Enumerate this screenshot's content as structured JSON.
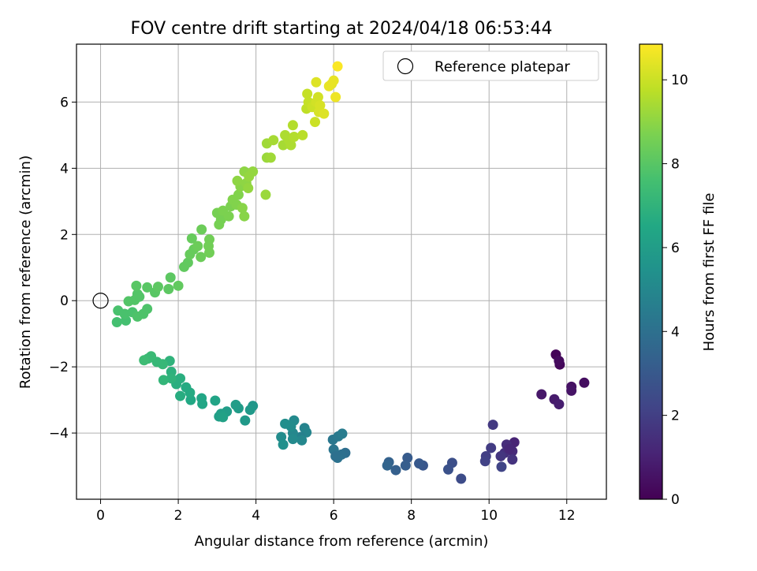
{
  "chart_data": {
    "type": "scatter",
    "title": "FOV centre drift starting at 2024/04/18 06:53:44",
    "xlabel": "Angular distance from reference (arcmin)",
    "ylabel": "Rotation from reference (arcmin)",
    "xlim": [
      -0.62,
      13.02
    ],
    "ylim": [
      -6.0,
      7.75
    ],
    "xticks": [
      0,
      2,
      4,
      6,
      8,
      10,
      12
    ],
    "yticks": [
      -4,
      -2,
      0,
      2,
      4,
      6
    ],
    "grid": true,
    "legend": {
      "position": "top-right",
      "entries": [
        "Reference platepar"
      ]
    },
    "reference_point": {
      "x": 0,
      "y": 0
    },
    "colorbar": {
      "label": "Hours from first FF file",
      "range": [
        0,
        10.85
      ],
      "ticks": [
        0,
        2,
        4,
        6,
        8,
        10
      ],
      "colormap": "viridis"
    },
    "series": [
      {
        "values": [
          {
            "x": 11.72,
            "y": -1.63,
            "h": 0.1
          },
          {
            "x": 11.82,
            "y": -1.93,
            "h": 0.2
          },
          {
            "x": 11.8,
            "y": -1.82,
            "h": 0.3
          },
          {
            "x": 12.45,
            "y": -2.48,
            "h": 0.4
          },
          {
            "x": 12.12,
            "y": -2.6,
            "h": 0.5
          },
          {
            "x": 12.12,
            "y": -2.72,
            "h": 0.6
          },
          {
            "x": 11.35,
            "y": -2.83,
            "h": 0.7
          },
          {
            "x": 11.68,
            "y": -2.98,
            "h": 0.8
          },
          {
            "x": 11.8,
            "y": -3.13,
            "h": 0.9
          },
          {
            "x": 10.65,
            "y": -4.28,
            "h": 1.1
          },
          {
            "x": 10.6,
            "y": -4.55,
            "h": 1.3
          },
          {
            "x": 10.45,
            "y": -4.35,
            "h": 1.4
          },
          {
            "x": 10.4,
            "y": -4.6,
            "h": 1.5
          },
          {
            "x": 10.3,
            "y": -4.7,
            "h": 1.7
          },
          {
            "x": 10.6,
            "y": -4.8,
            "h": 1.6
          },
          {
            "x": 10.1,
            "y": -3.75,
            "h": 1.8
          },
          {
            "x": 10.05,
            "y": -4.45,
            "h": 1.9
          },
          {
            "x": 9.92,
            "y": -4.7,
            "h": 2.0
          },
          {
            "x": 9.9,
            "y": -4.85,
            "h": 2.1
          },
          {
            "x": 10.32,
            "y": -5.02,
            "h": 2.2
          },
          {
            "x": 10.52,
            "y": -4.48,
            "h": 1.2
          },
          {
            "x": 9.05,
            "y": -4.9,
            "h": 2.6
          },
          {
            "x": 8.95,
            "y": -5.1,
            "h": 2.7
          },
          {
            "x": 9.28,
            "y": -5.38,
            "h": 2.5
          },
          {
            "x": 8.3,
            "y": -4.98,
            "h": 2.9
          },
          {
            "x": 8.2,
            "y": -4.92,
            "h": 3.0
          },
          {
            "x": 7.9,
            "y": -4.75,
            "h": 3.1
          },
          {
            "x": 7.85,
            "y": -4.98,
            "h": 3.2
          },
          {
            "x": 7.6,
            "y": -5.12,
            "h": 3.3
          },
          {
            "x": 7.42,
            "y": -4.88,
            "h": 3.4
          },
          {
            "x": 7.38,
            "y": -4.98,
            "h": 3.5
          },
          {
            "x": 6.3,
            "y": -4.6,
            "h": 3.9
          },
          {
            "x": 6.2,
            "y": -4.65,
            "h": 4.0
          },
          {
            "x": 6.1,
            "y": -4.75,
            "h": 4.1
          },
          {
            "x": 6.0,
            "y": -4.5,
            "h": 4.2
          },
          {
            "x": 6.05,
            "y": -4.7,
            "h": 4.0
          },
          {
            "x": 5.98,
            "y": -4.2,
            "h": 4.3
          },
          {
            "x": 6.12,
            "y": -4.1,
            "h": 4.4
          },
          {
            "x": 6.22,
            "y": -4.02,
            "h": 4.5
          },
          {
            "x": 5.25,
            "y": -3.85,
            "h": 4.8
          },
          {
            "x": 5.3,
            "y": -3.98,
            "h": 4.9
          },
          {
            "x": 5.15,
            "y": -4.12,
            "h": 4.7
          },
          {
            "x": 5.18,
            "y": -4.22,
            "h": 5.0
          },
          {
            "x": 4.95,
            "y": -4.0,
            "h": 5.0
          },
          {
            "x": 4.98,
            "y": -3.62,
            "h": 5.1
          },
          {
            "x": 4.9,
            "y": -3.8,
            "h": 5.2
          },
          {
            "x": 4.75,
            "y": -3.72,
            "h": 5.3
          },
          {
            "x": 4.65,
            "y": -4.12,
            "h": 5.2
          },
          {
            "x": 4.7,
            "y": -4.35,
            "h": 5.4
          },
          {
            "x": 4.95,
            "y": -4.18,
            "h": 5.1
          },
          {
            "x": 3.92,
            "y": -3.18,
            "h": 5.7
          },
          {
            "x": 3.85,
            "y": -3.3,
            "h": 5.8
          },
          {
            "x": 3.72,
            "y": -3.62,
            "h": 5.8
          },
          {
            "x": 3.55,
            "y": -3.25,
            "h": 5.9
          },
          {
            "x": 3.48,
            "y": -3.15,
            "h": 6.0
          },
          {
            "x": 3.25,
            "y": -3.35,
            "h": 6.0
          },
          {
            "x": 3.1,
            "y": -3.42,
            "h": 6.1
          },
          {
            "x": 3.05,
            "y": -3.5,
            "h": 6.1
          },
          {
            "x": 3.15,
            "y": -3.52,
            "h": 6.2
          },
          {
            "x": 2.95,
            "y": -3.02,
            "h": 6.3
          },
          {
            "x": 2.6,
            "y": -2.95,
            "h": 6.4
          },
          {
            "x": 2.62,
            "y": -3.12,
            "h": 6.4
          },
          {
            "x": 2.32,
            "y": -3.0,
            "h": 6.5
          },
          {
            "x": 2.3,
            "y": -2.78,
            "h": 6.6
          },
          {
            "x": 2.2,
            "y": -2.62,
            "h": 6.6
          },
          {
            "x": 2.05,
            "y": -2.88,
            "h": 6.7
          },
          {
            "x": 2.05,
            "y": -2.35,
            "h": 6.8
          },
          {
            "x": 1.95,
            "y": -2.52,
            "h": 6.8
          },
          {
            "x": 1.82,
            "y": -2.15,
            "h": 6.9
          },
          {
            "x": 1.82,
            "y": -2.35,
            "h": 7.0
          },
          {
            "x": 1.62,
            "y": -2.4,
            "h": 7.1
          },
          {
            "x": 1.78,
            "y": -1.82,
            "h": 7.0
          },
          {
            "x": 1.6,
            "y": -1.92,
            "h": 7.2
          },
          {
            "x": 1.45,
            "y": -1.85,
            "h": 7.2
          },
          {
            "x": 1.3,
            "y": -1.68,
            "h": 7.3
          },
          {
            "x": 1.22,
            "y": -1.75,
            "h": 7.3
          },
          {
            "x": 1.12,
            "y": -1.8,
            "h": 7.4
          },
          {
            "x": 0.42,
            "y": -0.65,
            "h": 7.6
          },
          {
            "x": 0.65,
            "y": -0.6,
            "h": 7.6
          },
          {
            "x": 0.45,
            "y": -0.3,
            "h": 7.7
          },
          {
            "x": 0.62,
            "y": -0.4,
            "h": 7.7
          },
          {
            "x": 0.82,
            "y": -0.35,
            "h": 7.7
          },
          {
            "x": 0.95,
            "y": -0.48,
            "h": 7.8
          },
          {
            "x": 1.1,
            "y": -0.4,
            "h": 7.8
          },
          {
            "x": 1.2,
            "y": -0.25,
            "h": 7.8
          },
          {
            "x": 0.72,
            "y": -0.02,
            "h": 7.9
          },
          {
            "x": 0.88,
            "y": 0.02,
            "h": 7.9
          },
          {
            "x": 1.0,
            "y": 0.12,
            "h": 7.9
          },
          {
            "x": 0.95,
            "y": 0.2,
            "h": 7.9
          },
          {
            "x": 0.92,
            "y": 0.45,
            "h": 8.0
          },
          {
            "x": 1.2,
            "y": 0.4,
            "h": 8.0
          },
          {
            "x": 1.4,
            "y": 0.25,
            "h": 8.0
          },
          {
            "x": 1.48,
            "y": 0.42,
            "h": 8.1
          },
          {
            "x": 1.75,
            "y": 0.35,
            "h": 8.1
          },
          {
            "x": 1.8,
            "y": 0.7,
            "h": 8.1
          },
          {
            "x": 2.0,
            "y": 0.45,
            "h": 8.2
          },
          {
            "x": 2.15,
            "y": 1.02,
            "h": 8.2
          },
          {
            "x": 2.25,
            "y": 1.15,
            "h": 8.2
          },
          {
            "x": 2.3,
            "y": 1.4,
            "h": 8.3
          },
          {
            "x": 2.4,
            "y": 1.55,
            "h": 8.3
          },
          {
            "x": 2.35,
            "y": 1.88,
            "h": 8.3
          },
          {
            "x": 2.5,
            "y": 1.65,
            "h": 8.4
          },
          {
            "x": 2.58,
            "y": 1.32,
            "h": 8.4
          },
          {
            "x": 2.6,
            "y": 2.15,
            "h": 8.4
          },
          {
            "x": 2.8,
            "y": 1.85,
            "h": 8.5
          },
          {
            "x": 2.78,
            "y": 1.65,
            "h": 8.5
          },
          {
            "x": 2.8,
            "y": 1.45,
            "h": 8.5
          },
          {
            "x": 3.05,
            "y": 2.3,
            "h": 8.6
          },
          {
            "x": 3.1,
            "y": 2.45,
            "h": 8.6
          },
          {
            "x": 3.0,
            "y": 2.65,
            "h": 8.6
          },
          {
            "x": 3.15,
            "y": 2.72,
            "h": 8.7
          },
          {
            "x": 3.3,
            "y": 2.55,
            "h": 8.7
          },
          {
            "x": 3.35,
            "y": 2.85,
            "h": 8.7
          },
          {
            "x": 3.4,
            "y": 3.05,
            "h": 8.8
          },
          {
            "x": 3.55,
            "y": 3.2,
            "h": 8.8
          },
          {
            "x": 3.5,
            "y": 2.9,
            "h": 8.8
          },
          {
            "x": 3.65,
            "y": 2.8,
            "h": 8.9
          },
          {
            "x": 3.7,
            "y": 2.55,
            "h": 8.9
          },
          {
            "x": 3.6,
            "y": 3.45,
            "h": 8.9
          },
          {
            "x": 3.52,
            "y": 3.62,
            "h": 9.0
          },
          {
            "x": 3.75,
            "y": 3.55,
            "h": 9.0
          },
          {
            "x": 3.7,
            "y": 3.9,
            "h": 9.0
          },
          {
            "x": 3.82,
            "y": 3.75,
            "h": 9.1
          },
          {
            "x": 3.8,
            "y": 3.4,
            "h": 9.1
          },
          {
            "x": 3.92,
            "y": 3.9,
            "h": 9.1
          },
          {
            "x": 4.25,
            "y": 3.2,
            "h": 9.2
          },
          {
            "x": 4.28,
            "y": 4.32,
            "h": 9.2
          },
          {
            "x": 4.38,
            "y": 4.32,
            "h": 9.3
          },
          {
            "x": 4.28,
            "y": 4.75,
            "h": 9.3
          },
          {
            "x": 4.45,
            "y": 4.85,
            "h": 9.4
          },
          {
            "x": 4.7,
            "y": 4.7,
            "h": 9.4
          },
          {
            "x": 4.75,
            "y": 5.0,
            "h": 9.5
          },
          {
            "x": 4.85,
            "y": 4.85,
            "h": 9.5
          },
          {
            "x": 4.9,
            "y": 4.7,
            "h": 9.5
          },
          {
            "x": 4.95,
            "y": 5.3,
            "h": 9.6
          },
          {
            "x": 4.98,
            "y": 4.95,
            "h": 9.6
          },
          {
            "x": 5.2,
            "y": 5.0,
            "h": 9.7
          },
          {
            "x": 5.3,
            "y": 5.8,
            "h": 9.8
          },
          {
            "x": 5.32,
            "y": 6.25,
            "h": 9.9
          },
          {
            "x": 5.35,
            "y": 6.0,
            "h": 9.9
          },
          {
            "x": 5.45,
            "y": 5.85,
            "h": 10.0
          },
          {
            "x": 5.52,
            "y": 5.4,
            "h": 10.0
          },
          {
            "x": 5.55,
            "y": 6.0,
            "h": 10.1
          },
          {
            "x": 5.6,
            "y": 6.15,
            "h": 10.1
          },
          {
            "x": 5.62,
            "y": 5.7,
            "h": 10.2
          },
          {
            "x": 5.65,
            "y": 5.9,
            "h": 10.2
          },
          {
            "x": 5.75,
            "y": 5.65,
            "h": 10.3
          },
          {
            "x": 5.55,
            "y": 6.6,
            "h": 10.3
          },
          {
            "x": 5.95,
            "y": 6.55,
            "h": 10.4
          },
          {
            "x": 6.0,
            "y": 6.65,
            "h": 10.5
          },
          {
            "x": 5.88,
            "y": 6.48,
            "h": 10.5
          },
          {
            "x": 6.05,
            "y": 6.15,
            "h": 10.6
          },
          {
            "x": 6.1,
            "y": 7.08,
            "h": 10.8
          }
        ]
      }
    ]
  }
}
